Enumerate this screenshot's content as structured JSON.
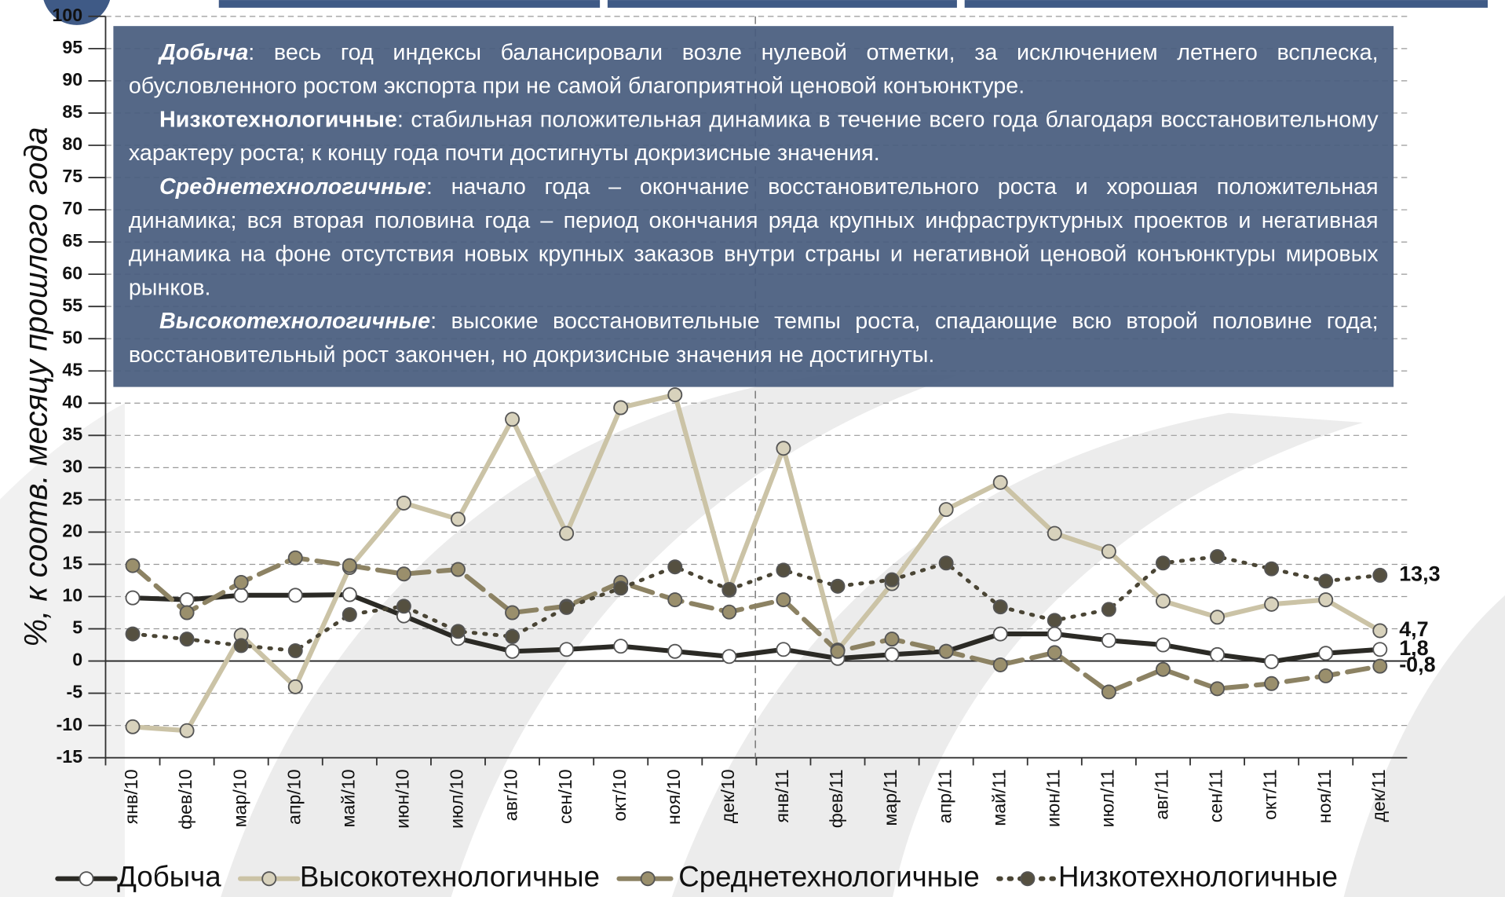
{
  "chart_data": {
    "type": "line",
    "y_label": "%, к соотв. месяцу прошлого года",
    "categories": [
      "янв/10",
      "фев/10",
      "мар/10",
      "апр/10",
      "май/10",
      "июн/10",
      "июл/10",
      "авг/10",
      "сен/10",
      "окт/10",
      "ноя/10",
      "дек/10",
      "янв/11",
      "фев/11",
      "мар/11",
      "апр/11",
      "май/11",
      "июн/11",
      "июл/11",
      "авг/11",
      "сен/11",
      "окт/11",
      "ноя/11",
      "дек/11"
    ],
    "series": [
      {
        "name": "Добыча",
        "color": "#2b2a25",
        "marker_fill": "#ffffff",
        "line_style": "solid",
        "values": [
          9.8,
          9.5,
          10.2,
          10.2,
          10.3,
          7,
          3.5,
          1.5,
          1.8,
          2.3,
          1.5,
          0.7,
          1.8,
          0.4,
          1,
          1.5,
          4.2,
          4.2,
          3.2,
          2.5,
          1,
          -0.1,
          1.2,
          1.8
        ],
        "value_labels": [
          null,
          null,
          null,
          null,
          null,
          null,
          null,
          null,
          null,
          null,
          null,
          null,
          null,
          null,
          null,
          null,
          null,
          null,
          null,
          null,
          null,
          null,
          null,
          "1,8"
        ]
      },
      {
        "name": "Высокотехнологичные",
        "color": "#cbc3a6",
        "marker_fill": "#d8d2bc",
        "line_style": "solid",
        "values": [
          -10.2,
          -10.8,
          4,
          -4,
          14.5,
          24.5,
          22,
          37.5,
          19.8,
          39.3,
          41.3,
          11,
          33,
          1.7,
          12,
          23.5,
          27.7,
          19.8,
          17,
          9.3,
          6.8,
          8.8,
          9.5,
          4.7
        ],
        "value_labels": [
          null,
          null,
          null,
          null,
          null,
          null,
          null,
          null,
          null,
          null,
          null,
          null,
          null,
          null,
          null,
          null,
          null,
          null,
          null,
          null,
          null,
          null,
          null,
          "4,7"
        ]
      },
      {
        "name": "Среднетехнологичные",
        "color": "#8c8263",
        "marker_fill": "#9a8f6c",
        "line_style": "dashed",
        "values": [
          14.8,
          7.5,
          12.2,
          16,
          14.8,
          13.5,
          14.2,
          7.5,
          8.5,
          12.2,
          9.5,
          7.6,
          9.5,
          1.5,
          3.4,
          1.5,
          -0.6,
          1.3,
          -4.8,
          -1.3,
          -4.3,
          -3.5,
          -2.3,
          -0.8
        ],
        "value_labels": [
          null,
          null,
          null,
          null,
          null,
          null,
          null,
          null,
          null,
          null,
          null,
          null,
          null,
          null,
          null,
          null,
          null,
          null,
          null,
          null,
          null,
          null,
          null,
          "-0,8"
        ]
      },
      {
        "name": "Низкотехнологичные",
        "color": "#4a4535",
        "marker_fill": "#555040",
        "line_style": "dotted",
        "values": [
          4.2,
          3.4,
          2.4,
          1.6,
          7.2,
          8.5,
          4.6,
          3.8,
          8.3,
          11.3,
          14.6,
          11.1,
          14.1,
          11.6,
          12.6,
          15.2,
          8.4,
          6.3,
          8,
          15.2,
          16.2,
          14.3,
          12.4,
          13.3
        ],
        "value_labels": [
          null,
          null,
          null,
          null,
          null,
          null,
          null,
          null,
          null,
          null,
          null,
          null,
          null,
          null,
          null,
          null,
          null,
          null,
          null,
          null,
          null,
          null,
          null,
          "13,3"
        ]
      }
    ],
    "ylim": [
      -15,
      100
    ],
    "yticks": [
      100,
      95,
      90,
      85,
      80,
      75,
      70,
      65,
      60,
      55,
      50,
      45,
      40,
      35,
      30,
      25,
      20,
      15,
      10,
      5,
      0,
      -5,
      -10,
      -15
    ],
    "grid": true,
    "legend": "bottom",
    "annotation": [
      {
        "heading": "Добыча",
        "text": ": весь год индексы балансировали возле нулевой отметки, за исключением летнего всплеска, обусловленного ростом экспорта при не самой благоприятной ценовой конъюнктуре."
      },
      {
        "heading": "Низкотехнологичные",
        "text": ": стабильная положительная динамика в течение всего года благодаря восстановительному характеру роста; к концу года почти достигнуты докризисные значения."
      },
      {
        "heading": "Среднетехнологичные",
        "text": ": начало года – окончание восстановительного роста и хорошая положительная динамика; вся вторая половина года – период окончания ряда крупных инфраструктурных проектов и негативная динамика на фоне отсутствия новых крупных заказов внутри страны и негативной ценовой конъюнктуры мировых рынков."
      },
      {
        "heading": "Высокотехнологичные",
        "text": ": высокие восстановительные темпы роста, спадающие всю второй половине года; восстановительный рост закончен, но докризисные значения не достигнуты."
      }
    ]
  }
}
